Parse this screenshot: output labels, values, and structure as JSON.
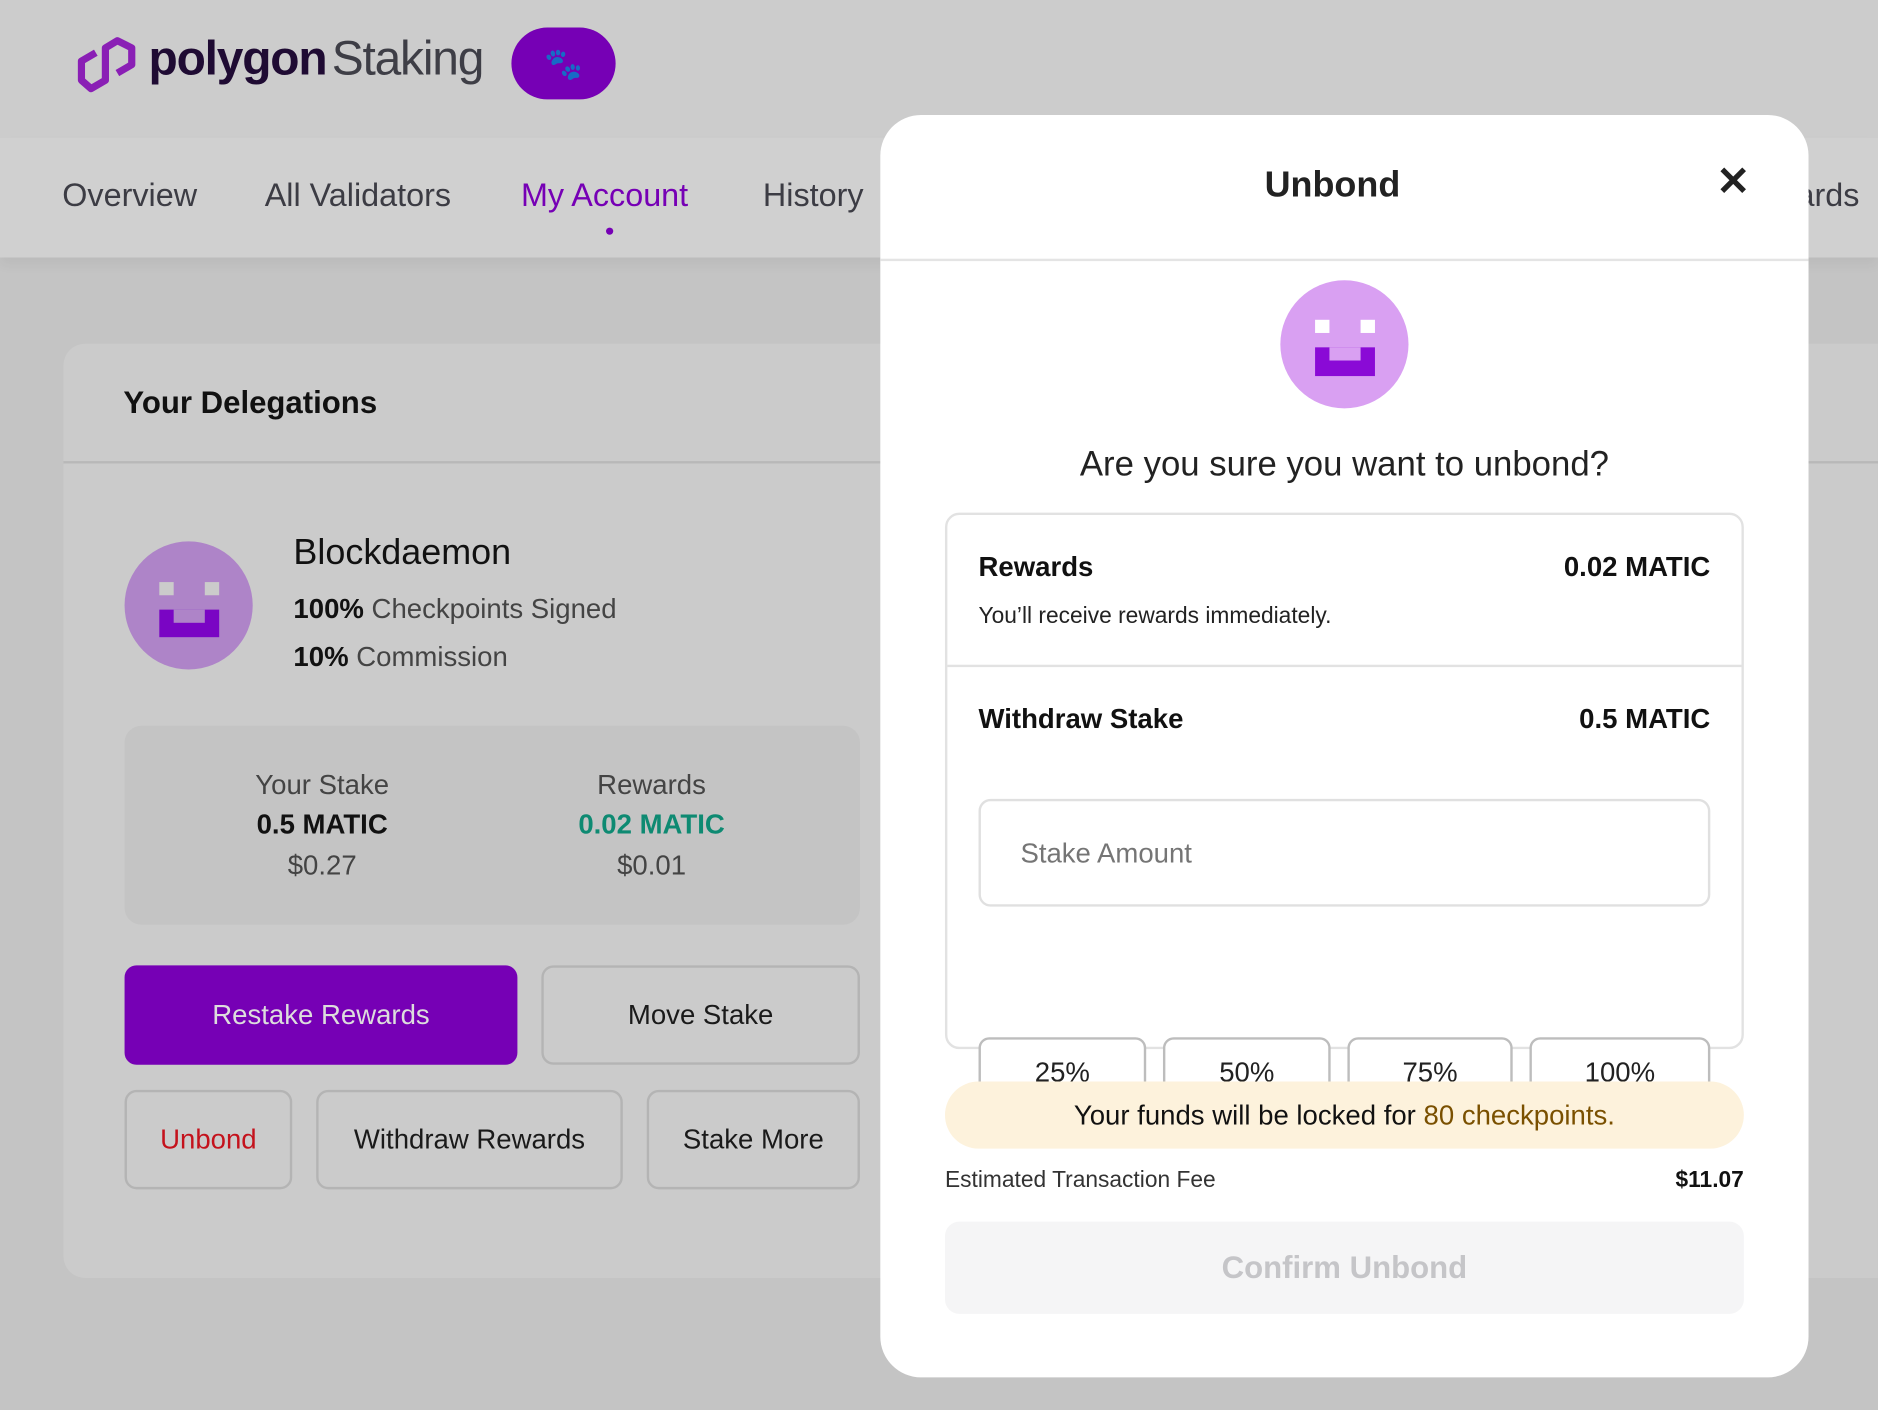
{
  "header": {
    "brand": "polygon",
    "product": "Staking",
    "badge_icon": "paw-icon"
  },
  "nav": {
    "items": [
      {
        "label": "Overview"
      },
      {
        "label": "All Validators"
      },
      {
        "label": "My Account",
        "active": true
      },
      {
        "label": "History"
      },
      {
        "label": "ards"
      }
    ]
  },
  "delegations": {
    "title": "Your Delegations",
    "validator": {
      "name": "Blockdaemon",
      "checkpoints_value": "100%",
      "checkpoints_label": "Checkpoints Signed",
      "commission_value": "10%",
      "commission_label": "Commission"
    },
    "stake": {
      "label": "Your Stake",
      "amount": "0.5 MATIC",
      "usd": "$0.27"
    },
    "rewards": {
      "label": "Rewards",
      "amount": "0.02 MATIC",
      "usd": "$0.01"
    },
    "buttons": {
      "restake": "Restake Rewards",
      "move": "Move Stake",
      "unbond": "Unbond",
      "withdraw": "Withdraw Rewards",
      "stake_more": "Stake More"
    }
  },
  "modal": {
    "title": "Unbond",
    "question": "Are you sure you want to unbond?",
    "rewards": {
      "label": "Rewards",
      "amount": "0.02 MATIC",
      "note": "You’ll receive rewards immediately."
    },
    "withdraw": {
      "label": "Withdraw Stake",
      "amount": "0.5 MATIC",
      "placeholder": "Stake Amount",
      "value": ""
    },
    "percents": [
      "25%",
      "50%",
      "75%",
      "100%"
    ],
    "lock": {
      "prefix": "Your funds will be locked for",
      "highlight": "80 checkpoints."
    },
    "fee": {
      "label": "Estimated Transaction Fee",
      "value": "$11.07"
    },
    "confirm": "Confirm Unbond"
  },
  "colors": {
    "brand": "#7600b5",
    "green": "#0e8a72",
    "red": "#c4121c",
    "lock_bg": "#fdf2dc",
    "lock_text": "#7a5000"
  }
}
